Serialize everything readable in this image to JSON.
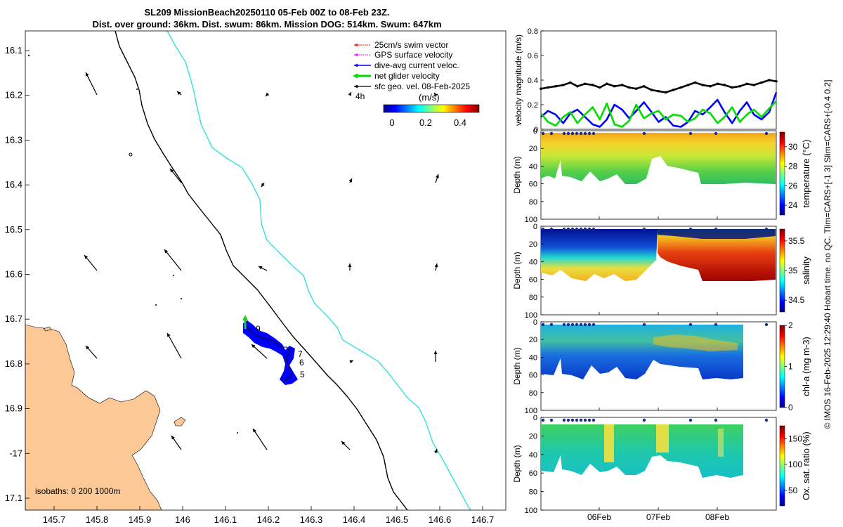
{
  "header": {
    "title_line1": "SL209 MissionBeach20250110 05-Feb 00Z to 08-Feb 23Z.",
    "title_line2": "Dist. over ground: 36km. Dist. swum: 86km. Mission DOG: 514km. Swum: 647km"
  },
  "map": {
    "lon_ticks": [
      "145.7",
      "145.8",
      "145.9",
      "146",
      "146.1",
      "146.2",
      "146.3",
      "146.4",
      "146.5",
      "146.6",
      "146.7"
    ],
    "lat_ticks": [
      "16.1",
      "16.2",
      "16.3",
      "16.4",
      "16.5",
      "16.6",
      "16.7",
      "16.8",
      "16.9",
      "-17",
      "17.1"
    ],
    "legend": {
      "items": [
        {
          "label": "25cm/s swim vector",
          "color": "#ff0000"
        },
        {
          "label": "GPS surface velocity",
          "color": "#ff00ff"
        },
        {
          "label": "dive-avg current veloc.",
          "color": "#0000ff"
        },
        {
          "label": "net glider velocity",
          "color": "#00dd00"
        },
        {
          "label": "sfc geo. vel. 08-Feb-2025",
          "color": "#000000"
        }
      ],
      "hour_marker": "4h"
    },
    "colorbar": {
      "unit": "(m/s)",
      "ticks": [
        "0",
        "0.2",
        "0.4"
      ]
    },
    "isobath_label": "isobaths: 0   200  1000m",
    "track_labels": [
      "9",
      "7",
      "6",
      "5"
    ],
    "colors": {
      "land": "#fbc896",
      "isobath_200": "#000000",
      "isobath_1000": "#33e0e0",
      "track": "#0000ff"
    }
  },
  "chart_data": [
    {
      "type": "line",
      "title": "",
      "ylabel": "velocity magnitude (m/s)",
      "ylim": [
        0,
        0.8
      ],
      "yticks": [
        "0",
        "0.2",
        "0.4",
        "0.6",
        "0.8"
      ],
      "xlim": [
        0,
        4
      ],
      "series": [
        {
          "name": "sfc geo. vel.",
          "color": "#000000",
          "x": [
            0,
            0.12,
            0.25,
            0.38,
            0.5,
            0.62,
            0.75,
            0.88,
            1.0,
            1.12,
            1.25,
            1.38,
            1.5,
            1.62,
            1.75,
            1.88,
            2.0,
            2.12,
            2.25,
            2.38,
            2.5,
            2.62,
            2.75,
            2.88,
            3.0,
            3.12,
            3.25,
            3.38,
            3.5,
            3.62,
            3.75,
            3.88,
            4.0
          ],
          "values": [
            0.33,
            0.34,
            0.35,
            0.36,
            0.38,
            0.35,
            0.37,
            0.36,
            0.34,
            0.37,
            0.35,
            0.36,
            0.34,
            0.33,
            0.35,
            0.32,
            0.31,
            0.3,
            0.32,
            0.34,
            0.36,
            0.38,
            0.36,
            0.35,
            0.37,
            0.36,
            0.34,
            0.35,
            0.37,
            0.36,
            0.38,
            0.4,
            0.39
          ]
        },
        {
          "name": "dive-avg current veloc.",
          "color": "#0000ff",
          "x": [
            0,
            0.12,
            0.25,
            0.38,
            0.5,
            0.62,
            0.75,
            0.88,
            1.0,
            1.12,
            1.25,
            1.38,
            1.5,
            1.62,
            1.75,
            1.88,
            2.0,
            2.12,
            2.25,
            2.38,
            2.5,
            2.62,
            2.75,
            2.88,
            3.0,
            3.12,
            3.25,
            3.38,
            3.5,
            3.62,
            3.75,
            3.88,
            4.0
          ],
          "values": [
            0.1,
            0.15,
            0.12,
            0.05,
            0.13,
            0.16,
            0.1,
            0.04,
            0.02,
            0.08,
            0.2,
            0.16,
            0.09,
            0.15,
            0.22,
            0.14,
            0.06,
            0.1,
            0.03,
            0.02,
            0.06,
            0.15,
            0.12,
            0.18,
            0.24,
            0.14,
            0.05,
            0.15,
            0.22,
            0.12,
            0.08,
            0.14,
            0.3
          ]
        },
        {
          "name": "net glider velocity",
          "color": "#00dd00",
          "x": [
            0,
            0.12,
            0.25,
            0.38,
            0.5,
            0.62,
            0.75,
            0.88,
            1.0,
            1.12,
            1.25,
            1.38,
            1.5,
            1.62,
            1.75,
            1.88,
            2.0,
            2.12,
            2.25,
            2.38,
            2.5,
            2.62,
            2.75,
            2.88,
            3.0,
            3.12,
            3.25,
            3.38,
            3.5,
            3.62,
            3.75,
            3.88,
            4.0
          ],
          "values": [
            0.13,
            0.06,
            0.03,
            0.1,
            0.14,
            0.05,
            0.12,
            0.18,
            0.08,
            0.21,
            0.04,
            0.02,
            0.07,
            0.2,
            0.09,
            0.13,
            0.15,
            0.08,
            0.12,
            0.11,
            0.06,
            0.09,
            0.16,
            0.13,
            0.05,
            0.1,
            0.18,
            0.06,
            0.12,
            0.16,
            0.1,
            0.17,
            0.23
          ]
        }
      ]
    },
    {
      "type": "heatmap",
      "variable": "temperature",
      "xlabel": "",
      "ylabel": "Depth (m)",
      "ylim": [
        100,
        0
      ],
      "yticks": [
        "0",
        "20",
        "40",
        "60",
        "80",
        "100"
      ],
      "colorbar_label": "temperature (°C)",
      "colorbar_ticks": [
        "24",
        "26",
        "28",
        "30"
      ],
      "zlim": [
        23,
        31.5
      ]
    },
    {
      "type": "heatmap",
      "variable": "salinity",
      "xlabel": "",
      "ylabel": "Depth (m)",
      "ylim": [
        100,
        0
      ],
      "yticks": [
        "0",
        "20",
        "40",
        "60",
        "80",
        "100"
      ],
      "colorbar_label": "salinity",
      "colorbar_ticks": [
        "34.5",
        "35",
        "35.5"
      ],
      "zlim": [
        34.3,
        35.7
      ]
    },
    {
      "type": "heatmap",
      "variable": "chl-a",
      "xlabel": "",
      "ylabel": "Depth (m)",
      "ylim": [
        100,
        0
      ],
      "yticks": [
        "0",
        "20",
        "40",
        "60",
        "80",
        "100"
      ],
      "colorbar_label": "chl-a (mg m-3)",
      "colorbar_ticks": [
        "0",
        "1",
        "2"
      ],
      "zlim": [
        0,
        2
      ]
    },
    {
      "type": "heatmap",
      "variable": "oxygen saturation",
      "xlabel": "",
      "ylabel": "Depth (m)",
      "ylim": [
        100,
        0
      ],
      "yticks": [
        "0",
        "20",
        "40",
        "60",
        "80",
        "100"
      ],
      "colorbar_label": "Ox. sat. ratio (%)",
      "colorbar_ticks": [
        "50",
        "100",
        "150"
      ],
      "zlim": [
        20,
        175
      ],
      "xticks": [
        "06Feb",
        "07Feb",
        "08Feb"
      ]
    }
  ],
  "footer": {
    "side_note": "© IMOS 16-Feb-2025 12:29:40 Hobart time. no QC. Tlim=CARS+[-1 3] Slim=CARS+[-0.4 0.2]"
  }
}
